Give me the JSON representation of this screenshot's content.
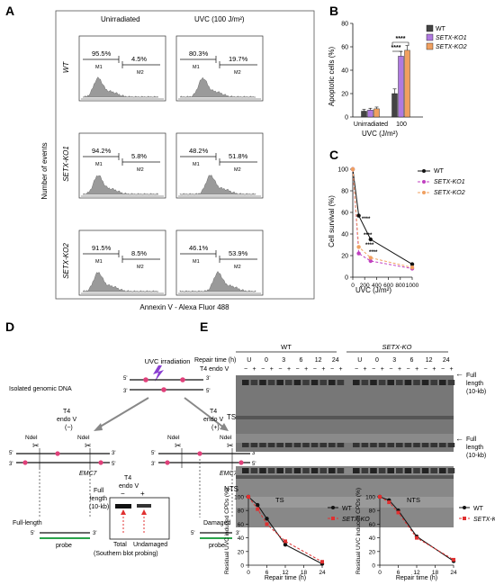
{
  "panel_letters": {
    "a": "A",
    "b": "B",
    "c": "C",
    "d": "D",
    "e": "E"
  },
  "panelA": {
    "col_unirr": "Unirradiated",
    "col_uvc": "UVC (100 J/m²)",
    "row_labels": [
      "WT",
      "SETX-KO1",
      "SETX-KO2"
    ],
    "y_label": "Number of events",
    "x_label": "Annexin V - Alexa Fluor 488",
    "m1": "M1",
    "m2": "M2",
    "values": [
      [
        "95.5%",
        "4.5%",
        "80.3%",
        "19.7%"
      ],
      [
        "94.2%",
        "5.8%",
        "48.2%",
        "51.8%"
      ],
      [
        "91.5%",
        "8.5%",
        "46.1%",
        "53.9%"
      ]
    ]
  },
  "panelB": {
    "ylabel": "Apoptotic cells (%)",
    "xlabel": "UVC (J/m²)",
    "yticks": [
      "0",
      "20",
      "40",
      "60",
      "80"
    ],
    "groups": [
      "Unirradiated",
      "100"
    ],
    "legend": [
      "WT",
      "SETX-KO1",
      "SETX-KO2"
    ],
    "sig": "****",
    "colors": [
      "#444444",
      "#b07ae0",
      "#f0a060"
    ]
  },
  "panelC": {
    "ylabel": "Cell survival (%)",
    "xlabel": "UVC (J/m²)",
    "yticks": [
      "0",
      "20",
      "40",
      "60",
      "80",
      "100"
    ],
    "xticks": [
      "0",
      "200",
      "400",
      "600",
      "800",
      "1000"
    ],
    "legend": [
      "WT",
      "SETX-KO1",
      "SETX-KO2"
    ],
    "sig": "****",
    "colors": [
      "#111111",
      "#c040c0",
      "#f0a060"
    ]
  },
  "panelD": {
    "uvc": "UVC irradiation",
    "genomic": "Isolated genomic DNA",
    "t4": "T4",
    "endo": "endo V",
    "minus": "(−)",
    "plus": "(+)",
    "ndel": "NdeI",
    "emc7": "EMC7",
    "fulllength": "Full-length",
    "damaged": "Damaged",
    "probe": "probe",
    "p3": "3'",
    "p5": "5'",
    "full": "Full",
    "length": "length",
    "kb": "(10-kb)",
    "total": "Total",
    "undamaged": "Undamaged",
    "southern": "(Southern blot probing)",
    "m": "−",
    "p": "+"
  },
  "panelE": {
    "wt": "WT",
    "setx": "SETX-KO",
    "repair_time": "Repair time (h)",
    "t4": "T4 endo V",
    "lanes": [
      "U",
      "0",
      "3",
      "6",
      "12",
      "24"
    ],
    "ts": "TS",
    "nts": "NTS",
    "full": "Full",
    "length": "length",
    "kb": "(10-kb)",
    "plot_ylabel": "Residual UVC induced CPDs (%)",
    "plot_xlabel": "Repair time (h)",
    "xticks": [
      "0",
      "6",
      "12",
      "18",
      "24"
    ],
    "yticks": [
      "0",
      "20",
      "40",
      "60",
      "80",
      "100"
    ]
  },
  "chart_data": [
    {
      "type": "bar",
      "categories": [
        "Unirradiated",
        "100"
      ],
      "series": [
        {
          "name": "WT",
          "values": [
            5,
            20
          ]
        },
        {
          "name": "SETX-KO1",
          "values": [
            6,
            52
          ]
        },
        {
          "name": "SETX-KO2",
          "values": [
            7,
            57
          ]
        }
      ],
      "xlabel": "UVC (J/m²)",
      "ylabel": "Apoptotic cells (%)",
      "ylim": [
        0,
        80
      ]
    },
    {
      "type": "line",
      "x": [
        0,
        100,
        300,
        1000
      ],
      "series": [
        {
          "name": "WT",
          "values": [
            100,
            57,
            35,
            12
          ]
        },
        {
          "name": "SETX-KO1",
          "values": [
            100,
            22,
            15,
            8
          ]
        },
        {
          "name": "SETX-KO2",
          "values": [
            100,
            28,
            18,
            9
          ]
        }
      ],
      "xlabel": "UVC (J/m²)",
      "ylabel": "Cell survival (%)",
      "xlim": [
        0,
        1000
      ],
      "ylim": [
        0,
        100
      ]
    },
    {
      "type": "line",
      "x": [
        0,
        3,
        6,
        12,
        24
      ],
      "series": [
        {
          "name": "WT",
          "values": [
            100,
            88,
            68,
            30,
            2
          ]
        },
        {
          "name": "SETX-KO",
          "values": [
            100,
            82,
            60,
            35,
            5
          ]
        }
      ],
      "xlabel": "Repair time (h)",
      "ylabel": "Residual UVC induced CPDs (%)",
      "ylim": [
        0,
        100
      ]
    },
    {
      "type": "line",
      "x": [
        0,
        3,
        6,
        12,
        24
      ],
      "series": [
        {
          "name": "WT",
          "values": [
            100,
            95,
            80,
            42,
            6
          ]
        },
        {
          "name": "SETX-KO",
          "values": [
            100,
            92,
            77,
            40,
            8
          ]
        }
      ],
      "xlabel": "Repair time (h)",
      "ylabel": "Residual UVC induced CPDs (%)",
      "ylim": [
        0,
        100
      ]
    }
  ]
}
